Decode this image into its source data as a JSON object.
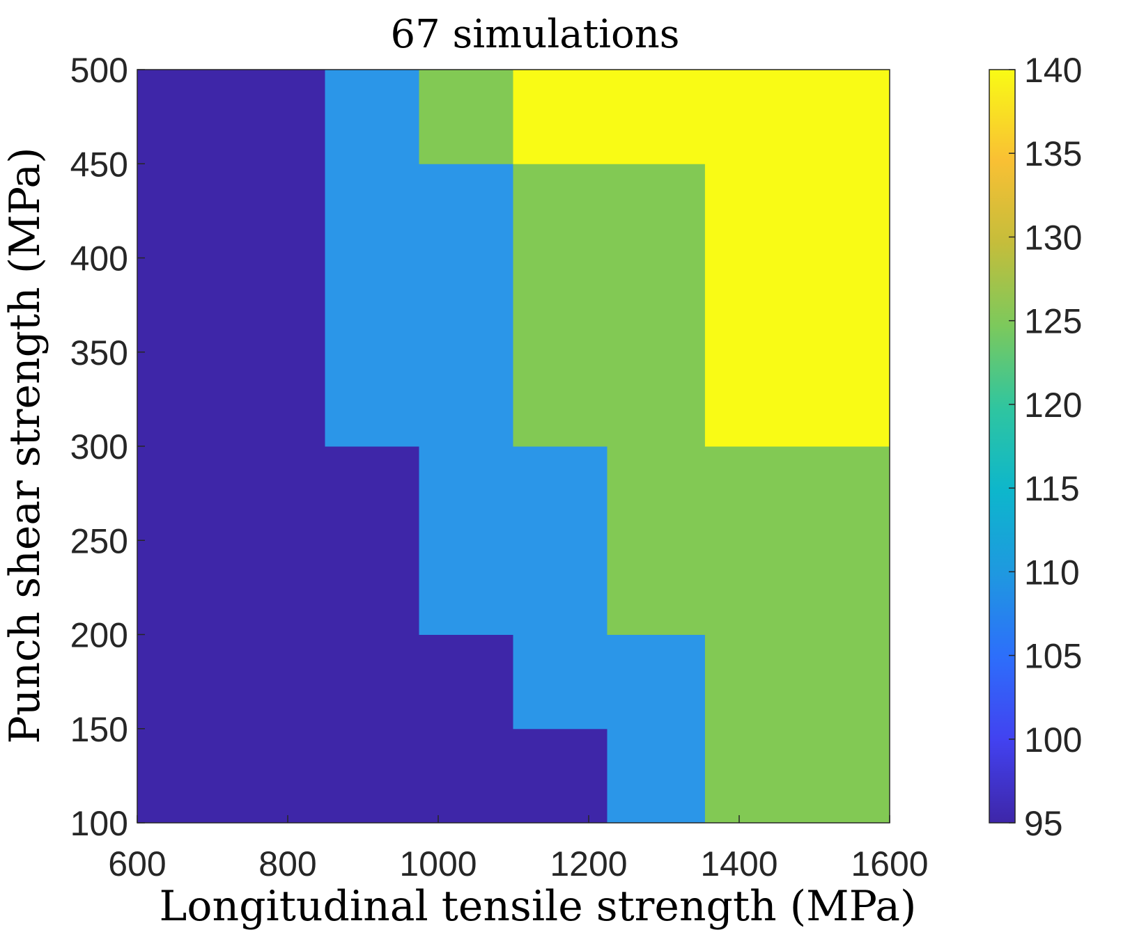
{
  "chart_data": {
    "type": "heatmap",
    "title": "67 simulations",
    "xlabel": "Longitudinal tensile strength (MPa)",
    "ylabel": "Punch shear strength (MPa)",
    "xlim": [
      600,
      1600
    ],
    "ylim": [
      100,
      500
    ],
    "xticks": [
      "600",
      "800",
      "1000",
      "1200",
      "1400",
      "1600"
    ],
    "yticks": [
      "100",
      "150",
      "200",
      "250",
      "300",
      "350",
      "400",
      "450",
      "500"
    ],
    "colorbar": {
      "lim": [
        95,
        140
      ],
      "ticks": [
        "95",
        "100",
        "105",
        "110",
        "115",
        "120",
        "125",
        "130",
        "135",
        "140"
      ]
    },
    "regions": [
      {
        "name": "region-95",
        "value": 95,
        "polygon": [
          [
            600,
            100
          ],
          [
            1225,
            100
          ],
          [
            1225,
            150
          ],
          [
            1100,
            150
          ],
          [
            1100,
            200
          ],
          [
            975,
            200
          ],
          [
            975,
            300
          ],
          [
            850,
            300
          ],
          [
            850,
            500
          ],
          [
            600,
            500
          ]
        ]
      },
      {
        "name": "region-110",
        "value": 110,
        "polygon": [
          [
            1225,
            100
          ],
          [
            1355,
            100
          ],
          [
            1355,
            200
          ],
          [
            1225,
            200
          ],
          [
            1225,
            300
          ],
          [
            1100,
            300
          ],
          [
            1100,
            450
          ],
          [
            975,
            450
          ],
          [
            975,
            500
          ],
          [
            850,
            500
          ],
          [
            850,
            300
          ],
          [
            975,
            300
          ],
          [
            975,
            200
          ],
          [
            1100,
            200
          ],
          [
            1100,
            150
          ],
          [
            1225,
            150
          ]
        ]
      },
      {
        "name": "region-125",
        "value": 125,
        "polygon": [
          [
            1355,
            100
          ],
          [
            1600,
            100
          ],
          [
            1600,
            300
          ],
          [
            1355,
            300
          ],
          [
            1355,
            450
          ],
          [
            1100,
            450
          ],
          [
            1100,
            500
          ],
          [
            975,
            500
          ],
          [
            975,
            450
          ],
          [
            1100,
            450
          ],
          [
            1100,
            300
          ],
          [
            1225,
            300
          ],
          [
            1225,
            200
          ],
          [
            1355,
            200
          ]
        ]
      },
      {
        "name": "region-140",
        "value": 140,
        "polygon": [
          [
            1100,
            450
          ],
          [
            1355,
            450
          ],
          [
            1355,
            300
          ],
          [
            1600,
            300
          ],
          [
            1600,
            500
          ],
          [
            1100,
            500
          ]
        ]
      }
    ],
    "colors": {
      "region-95": "#3e26a8",
      "region-110": "#2b96e8",
      "region-125": "#82c954",
      "region-140": "#f9fb15"
    }
  }
}
